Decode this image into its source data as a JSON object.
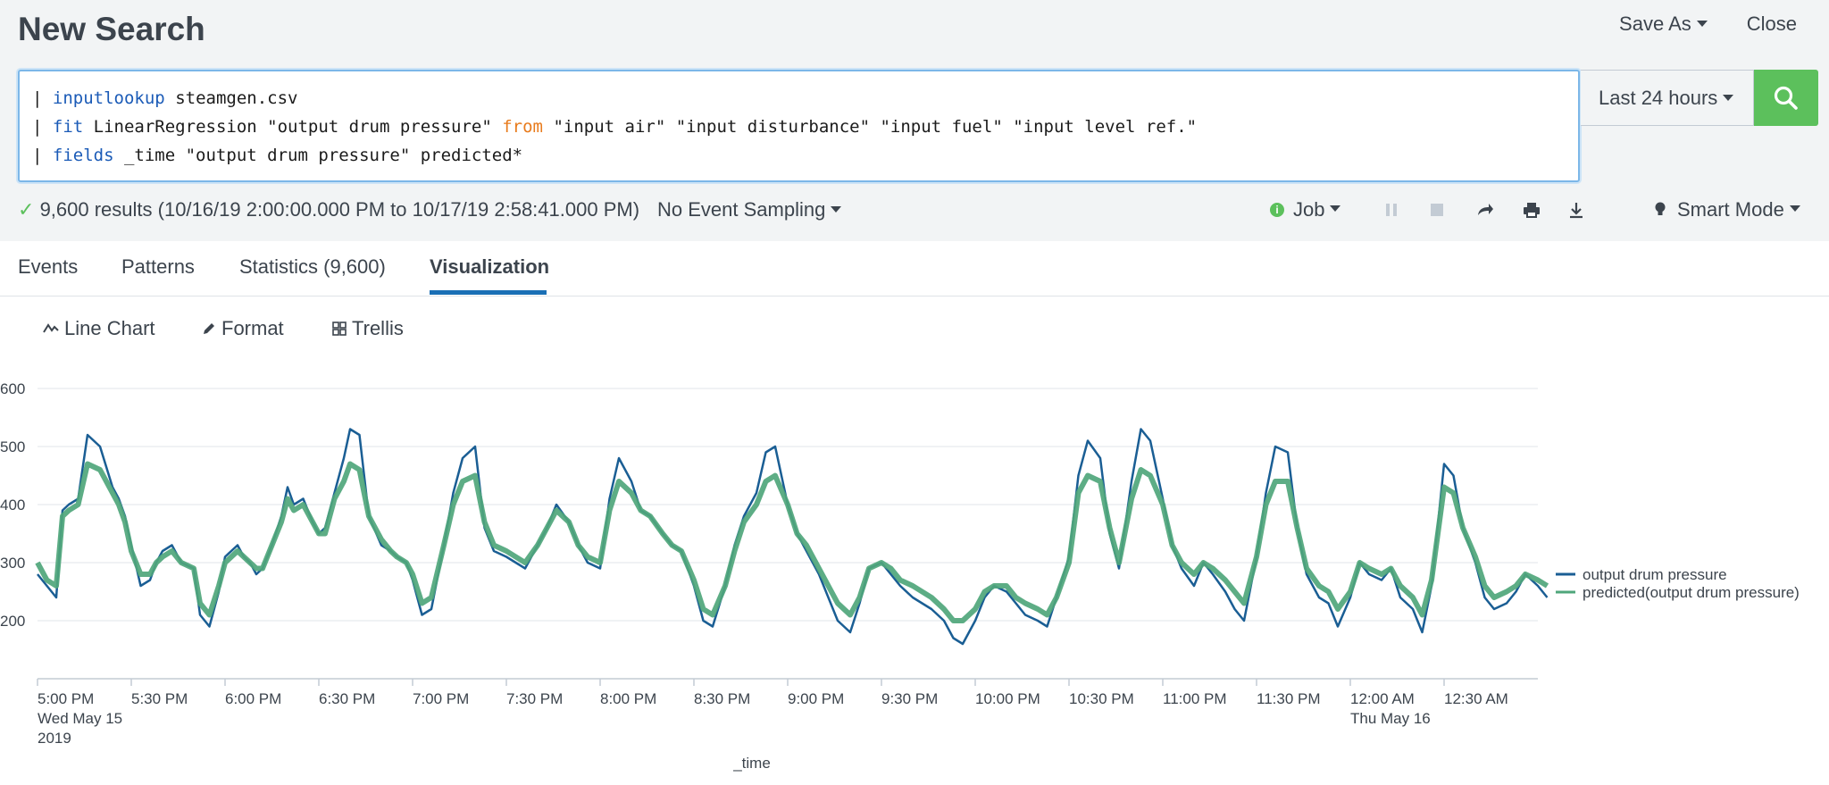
{
  "header": {
    "title": "New Search",
    "save_as": "Save As",
    "close": "Close"
  },
  "search": {
    "line1_pipe": "|",
    "line1_cmd": "inputlookup",
    "line1_rest": " steamgen.csv",
    "line2_pipe": "|",
    "line2_cmd": "fit",
    "line2_mid": " LinearRegression \"output drum pressure\" ",
    "line2_from": "from",
    "line2_rest": " \"input air\" \"input disturbance\" \"input fuel\" \"input level ref.\"",
    "line3_pipe": "|",
    "line3_cmd": "fields",
    "line3_rest": " _time \"output drum pressure\" predicted*",
    "time_range": "Last 24 hours"
  },
  "status": {
    "results": "9,600 results (10/16/19 2:00:00.000 PM to 10/17/19 2:58:41.000 PM)",
    "sampling": "No Event Sampling",
    "job": "Job",
    "mode": "Smart Mode"
  },
  "tabs": [
    {
      "label": "Events"
    },
    {
      "label": "Patterns"
    },
    {
      "label": "Statistics (9,600)"
    },
    {
      "label": "Visualization"
    }
  ],
  "viz_toolbar": {
    "chart_type": "Line Chart",
    "format": "Format",
    "trellis": "Trellis"
  },
  "colors": {
    "series1": "#1a5e94",
    "series2": "#4fa67b",
    "accent": "#1a6fb5",
    "search_button": "#5cc05c"
  },
  "chart_data": {
    "type": "line",
    "xlabel": "_time",
    "ylabel": "",
    "ylim": [
      100,
      600
    ],
    "yticks": [
      "200",
      "300",
      "400",
      "500",
      "600"
    ],
    "x_ticks": [
      {
        "line1": "5:00 PM",
        "line2": "Wed May 15",
        "line3": "2019"
      },
      {
        "line1": "5:30 PM",
        "line2": "",
        "line3": ""
      },
      {
        "line1": "6:00 PM",
        "line2": "",
        "line3": ""
      },
      {
        "line1": "6:30 PM",
        "line2": "",
        "line3": ""
      },
      {
        "line1": "7:00 PM",
        "line2": "",
        "line3": ""
      },
      {
        "line1": "7:30 PM",
        "line2": "",
        "line3": ""
      },
      {
        "line1": "8:00 PM",
        "line2": "",
        "line3": ""
      },
      {
        "line1": "8:30 PM",
        "line2": "",
        "line3": ""
      },
      {
        "line1": "9:00 PM",
        "line2": "",
        "line3": ""
      },
      {
        "line1": "9:30 PM",
        "line2": "",
        "line3": ""
      },
      {
        "line1": "10:00 PM",
        "line2": "",
        "line3": ""
      },
      {
        "line1": "10:30 PM",
        "line2": "",
        "line3": ""
      },
      {
        "line1": "11:00 PM",
        "line2": "",
        "line3": ""
      },
      {
        "line1": "11:30 PM",
        "line2": "",
        "line3": ""
      },
      {
        "line1": "12:00 AM",
        "line2": "Thu May 16",
        "line3": ""
      },
      {
        "line1": "12:30 AM",
        "line2": "",
        "line3": ""
      }
    ],
    "grid": true,
    "legend_position": "right",
    "series": [
      {
        "name": "output drum pressure",
        "x_minutes": [
          0,
          3,
          6,
          8,
          10,
          13,
          16,
          20,
          24,
          26,
          28,
          30,
          33,
          36,
          38,
          40,
          43,
          46,
          50,
          52,
          55,
          58,
          60,
          64,
          66,
          68,
          70,
          72,
          75,
          78,
          80,
          82,
          85,
          88,
          90,
          92,
          95,
          98,
          100,
          103,
          106,
          110,
          113,
          115,
          118,
          120,
          123,
          126,
          130,
          133,
          136,
          140,
          143,
          146,
          150,
          153,
          156,
          160,
          163,
          166,
          170,
          173,
          176,
          180,
          183,
          186,
          190,
          193,
          196,
          200,
          203,
          206,
          210,
          213,
          216,
          220,
          223,
          226,
          230,
          233,
          236,
          240,
          243,
          246,
          250,
          253,
          256,
          260,
          263,
          266,
          270,
          273,
          276,
          280,
          283,
          286,
          290,
          293,
          296,
          300,
          303,
          306,
          310,
          313,
          316,
          320,
          323,
          326,
          330,
          333,
          336,
          340,
          343,
          346,
          350,
          353,
          356,
          360,
          363,
          366,
          370,
          373,
          376,
          380,
          383,
          386,
          390,
          393,
          396,
          400,
          403,
          406,
          410,
          413,
          416,
          420,
          423,
          426,
          430,
          433,
          436,
          440,
          443,
          446,
          450,
          453,
          456,
          460,
          463,
          466,
          470,
          473,
          476,
          480,
          483
        ],
        "values": [
          280,
          260,
          240,
          390,
          400,
          410,
          520,
          500,
          430,
          410,
          380,
          330,
          260,
          270,
          300,
          320,
          330,
          300,
          290,
          210,
          190,
          250,
          310,
          330,
          310,
          300,
          280,
          290,
          330,
          380,
          430,
          400,
          410,
          370,
          350,
          360,
          420,
          480,
          530,
          520,
          380,
          330,
          320,
          310,
          300,
          270,
          210,
          220,
          330,
          420,
          480,
          500,
          360,
          320,
          310,
          300,
          290,
          330,
          360,
          400,
          370,
          330,
          300,
          290,
          410,
          480,
          440,
          390,
          380,
          350,
          330,
          320,
          260,
          200,
          190,
          260,
          330,
          380,
          420,
          490,
          500,
          400,
          350,
          320,
          280,
          240,
          200,
          180,
          230,
          290,
          300,
          280,
          260,
          240,
          230,
          220,
          200,
          170,
          160,
          200,
          240,
          260,
          250,
          230,
          210,
          200,
          190,
          240,
          310,
          450,
          510,
          480,
          350,
          290,
          440,
          530,
          510,
          410,
          330,
          290,
          260,
          300,
          280,
          250,
          220,
          200,
          310,
          420,
          500,
          490,
          360,
          280,
          240,
          230,
          190,
          240,
          300,
          280,
          270,
          290,
          240,
          220,
          180,
          260,
          470,
          450,
          360,
          300,
          240,
          220,
          230,
          250,
          280,
          260,
          240
        ]
      },
      {
        "name": "predicted(output drum pressure)",
        "x_minutes": [
          0,
          3,
          6,
          8,
          10,
          13,
          16,
          20,
          24,
          26,
          28,
          30,
          33,
          36,
          38,
          40,
          43,
          46,
          50,
          52,
          55,
          58,
          60,
          64,
          66,
          68,
          70,
          72,
          75,
          78,
          80,
          82,
          85,
          88,
          90,
          92,
          95,
          98,
          100,
          103,
          106,
          110,
          113,
          115,
          118,
          120,
          123,
          126,
          130,
          133,
          136,
          140,
          143,
          146,
          150,
          153,
          156,
          160,
          163,
          166,
          170,
          173,
          176,
          180,
          183,
          186,
          190,
          193,
          196,
          200,
          203,
          206,
          210,
          213,
          216,
          220,
          223,
          226,
          230,
          233,
          236,
          240,
          243,
          246,
          250,
          253,
          256,
          260,
          263,
          266,
          270,
          273,
          276,
          280,
          283,
          286,
          290,
          293,
          296,
          300,
          303,
          306,
          310,
          313,
          316,
          320,
          323,
          326,
          330,
          333,
          336,
          340,
          343,
          346,
          350,
          353,
          356,
          360,
          363,
          366,
          370,
          373,
          376,
          380,
          383,
          386,
          390,
          393,
          396,
          400,
          403,
          406,
          410,
          413,
          416,
          420,
          423,
          426,
          430,
          433,
          436,
          440,
          443,
          446,
          450,
          453,
          456,
          460,
          463,
          466,
          470,
          473,
          476,
          480,
          483
        ],
        "values": [
          300,
          270,
          260,
          380,
          390,
          400,
          470,
          460,
          420,
          400,
          370,
          320,
          280,
          280,
          300,
          310,
          320,
          300,
          290,
          230,
          210,
          260,
          300,
          320,
          310,
          300,
          290,
          290,
          330,
          370,
          410,
          390,
          400,
          370,
          350,
          350,
          410,
          440,
          470,
          460,
          380,
          340,
          320,
          310,
          300,
          280,
          230,
          240,
          330,
          400,
          440,
          450,
          370,
          330,
          320,
          310,
          300,
          330,
          360,
          390,
          370,
          330,
          310,
          300,
          390,
          440,
          420,
          390,
          380,
          350,
          330,
          320,
          270,
          220,
          210,
          260,
          320,
          370,
          400,
          440,
          450,
          400,
          350,
          330,
          290,
          260,
          230,
          210,
          240,
          290,
          300,
          290,
          270,
          260,
          250,
          240,
          220,
          200,
          200,
          220,
          250,
          260,
          260,
          240,
          230,
          220,
          210,
          240,
          300,
          420,
          450,
          440,
          360,
          300,
          410,
          460,
          450,
          400,
          330,
          300,
          280,
          300,
          290,
          270,
          250,
          230,
          310,
          400,
          440,
          440,
          360,
          290,
          260,
          250,
          220,
          250,
          300,
          290,
          280,
          290,
          260,
          240,
          210,
          270,
          430,
          420,
          360,
          310,
          260,
          240,
          250,
          260,
          280,
          270,
          260
        ]
      }
    ]
  }
}
